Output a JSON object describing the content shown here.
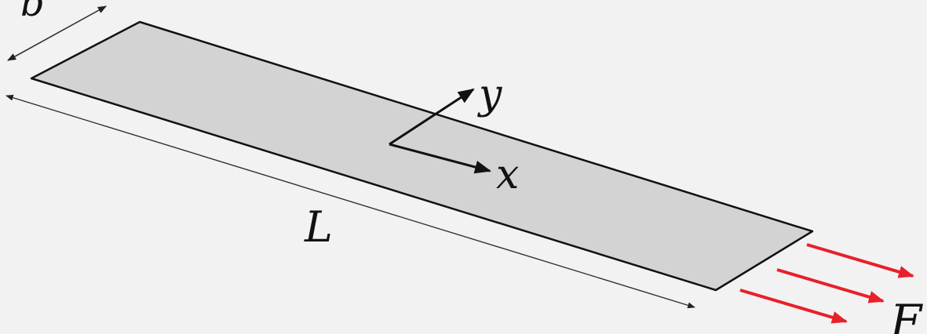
{
  "labels": {
    "width": "b",
    "length": "L",
    "x_axis": "x",
    "y_axis": "y",
    "force": "F"
  },
  "colors": {
    "background": "#f2f2f2",
    "plate_fill": "#d3d3d3",
    "plate_edge": "#111111",
    "dimension": "#333333",
    "axis": "#111111",
    "force": "#e8202a"
  },
  "force_arrow_count": 3
}
